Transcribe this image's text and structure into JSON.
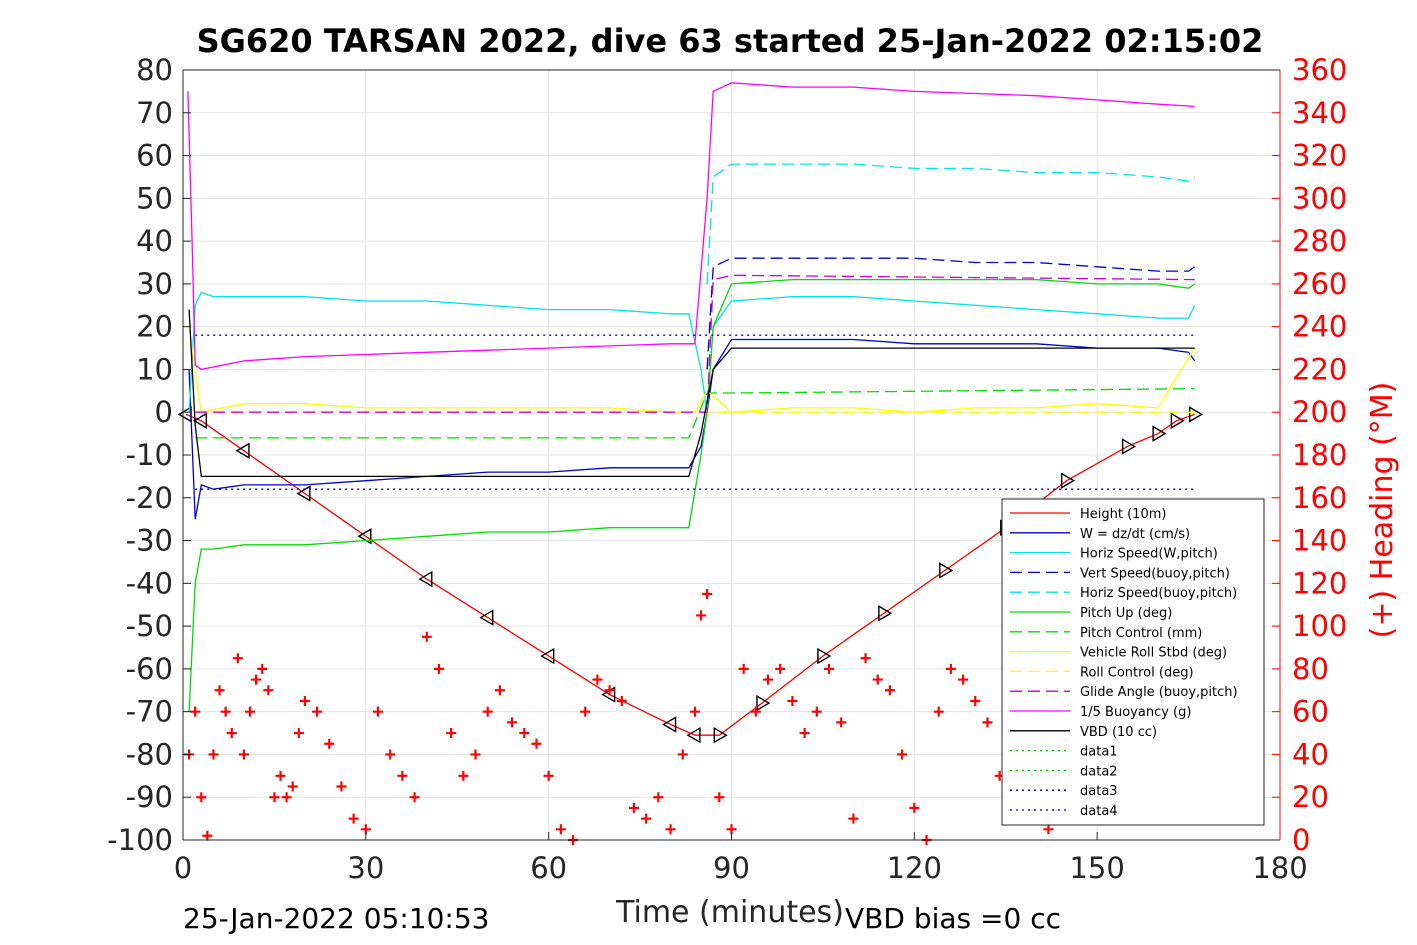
{
  "chart_data": {
    "type": "line",
    "title": "SG620 TARSAN 2022, dive 63 started 25-Jan-2022 02:15:02",
    "xlabel": "Time (minutes)",
    "ylabel_right": "(+) Heading (°M)",
    "footer_left": "25-Jan-2022 05:10:53",
    "footer_right": "VBD bias =0 cc",
    "xlim": [
      0,
      180
    ],
    "ylim_left": [
      -100,
      80
    ],
    "ylim_right": [
      0,
      360
    ],
    "x_ticks": [
      "0",
      "30",
      "60",
      "90",
      "120",
      "150",
      "180"
    ],
    "y_ticks_left": [
      "80",
      "70",
      "60",
      "50",
      "40",
      "30",
      "20",
      "10",
      "0",
      "-10",
      "-20",
      "-30",
      "-40",
      "-50",
      "-60",
      "-70",
      "-80",
      "-90",
      "-100"
    ],
    "y_ticks_right": [
      "360",
      "340",
      "320",
      "300",
      "280",
      "260",
      "240",
      "220",
      "200",
      "180",
      "160",
      "140",
      "120",
      "100",
      "80",
      "60",
      "40",
      "20",
      "0"
    ],
    "grid": true,
    "legend_position": "lower-right",
    "legend": [
      {
        "label": "Height (10m)",
        "color": "#ff0000",
        "dash": "solid"
      },
      {
        "label": "W = dz/dt (cm/s)",
        "color": "#0000cc",
        "dash": "solid"
      },
      {
        "label": "Horiz Speed(W,pitch)",
        "color": "#00e5e5",
        "dash": "solid"
      },
      {
        "label": "Vert Speed(buoy,pitch)",
        "color": "#0000cc",
        "dash": "dashed"
      },
      {
        "label": "Horiz Speed(buoy,pitch)",
        "color": "#00e5e5",
        "dash": "dashed"
      },
      {
        "label": "Pitch Up (deg)",
        "color": "#00dd00",
        "dash": "solid"
      },
      {
        "label": "Pitch Control (mm)",
        "color": "#00dd00",
        "dash": "dashed"
      },
      {
        "label": "Vehicle Roll Stbd (deg)",
        "color": "#ffff00",
        "dash": "solid"
      },
      {
        "label": "Roll Control (deg)",
        "color": "#ffff00",
        "dash": "dashed"
      },
      {
        "label": "Glide Angle (buoy,pitch)",
        "color": "#cc00cc",
        "dash": "dashed"
      },
      {
        "label": "1/5 Buoyancy (g)",
        "color": "#ff00ff",
        "dash": "solid"
      },
      {
        "label": "VBD (10 cc)",
        "color": "#000000",
        "dash": "solid"
      },
      {
        "label": "data1",
        "color": "#00cc00",
        "dash": "dotted"
      },
      {
        "label": "data2",
        "color": "#00cc00",
        "dash": "dotted"
      },
      {
        "label": "data3",
        "color": "#000066",
        "dash": "dotted"
      },
      {
        "label": "data4",
        "color": "#0000cc",
        "dash": "dotted"
      }
    ],
    "series": [
      {
        "name": "Height (10m)",
        "color": "#ff0000",
        "axis": "left",
        "x": [
          0.5,
          3,
          10,
          20,
          30,
          40,
          50,
          60,
          70,
          80,
          84,
          88,
          95,
          105,
          115,
          125,
          135,
          145,
          155,
          160,
          163,
          166
        ],
        "y": [
          -0.5,
          -2,
          -9,
          -19,
          -29,
          -39,
          -48,
          -57,
          -66,
          -73,
          -75.5,
          -75.5,
          -68,
          -57,
          -47,
          -37,
          -27,
          -16,
          -8,
          -5,
          -2,
          -0.5
        ]
      },
      {
        "name": "W = dz/dt (cm/s)",
        "color": "#0000cc",
        "axis": "left",
        "x": [
          1,
          2,
          3,
          5,
          10,
          20,
          30,
          40,
          50,
          60,
          70,
          80,
          83,
          85,
          86,
          87,
          90,
          100,
          110,
          120,
          130,
          140,
          150,
          160,
          165,
          166
        ],
        "y": [
          10,
          -25,
          -17,
          -18,
          -17,
          -17,
          -16,
          -15,
          -14,
          -14,
          -13,
          -13,
          -13,
          -8,
          0,
          10,
          17,
          17,
          17,
          16,
          16,
          16,
          15,
          15,
          14,
          12
        ]
      },
      {
        "name": "Horiz Speed(W,pitch)",
        "color": "#00e5e5",
        "axis": "left",
        "x": [
          1,
          2,
          3,
          5,
          10,
          20,
          30,
          40,
          50,
          60,
          70,
          80,
          83,
          85,
          86,
          87,
          90,
          100,
          110,
          120,
          130,
          140,
          150,
          160,
          165,
          166
        ],
        "y": [
          0,
          25,
          28,
          27,
          27,
          27,
          26,
          26,
          25,
          24,
          24,
          23,
          23,
          10,
          0,
          20,
          26,
          27,
          27,
          26,
          25,
          24,
          23,
          22,
          22,
          25
        ]
      },
      {
        "name": "Vert Speed(buoy,pitch)",
        "color": "#0000cc",
        "axis": "left",
        "dash": "dashed",
        "x": [
          86,
          87,
          90,
          100,
          110,
          120,
          130,
          140,
          150,
          160,
          165,
          166
        ],
        "y": [
          10,
          34,
          36,
          36,
          36,
          36,
          35,
          35,
          34,
          33,
          33,
          34
        ]
      },
      {
        "name": "Horiz Speed(buoy,pitch)",
        "color": "#00e5e5",
        "axis": "left",
        "dash": "dashed",
        "x": [
          86,
          87,
          90,
          100,
          110,
          120,
          130,
          140,
          150,
          160,
          165,
          166
        ],
        "y": [
          30,
          55,
          58,
          58,
          58,
          57,
          57,
          56,
          56,
          55,
          54,
          55
        ]
      },
      {
        "name": "Pitch Up (deg)",
        "color": "#00dd00",
        "axis": "left",
        "x": [
          1,
          2,
          3,
          5,
          10,
          20,
          30,
          40,
          50,
          60,
          70,
          80,
          83,
          85,
          86,
          87,
          90,
          100,
          110,
          120,
          130,
          140,
          150,
          160,
          165,
          166
        ],
        "y": [
          -70,
          -40,
          -32,
          -32,
          -31,
          -31,
          -30,
          -29,
          -28,
          -28,
          -27,
          -27,
          -27,
          -10,
          0,
          20,
          30,
          31,
          31,
          31,
          31,
          31,
          30,
          30,
          29,
          30
        ]
      },
      {
        "name": "Pitch Control (mm)",
        "color": "#00dd00",
        "axis": "left",
        "dash": "dashed",
        "x": [
          2,
          83,
          86,
          90,
          166
        ],
        "y": [
          -6,
          -6,
          4.5,
          4.5,
          5.5
        ]
      },
      {
        "name": "Vehicle Roll Stbd (deg)",
        "color": "#ffff00",
        "axis": "left",
        "x": [
          1,
          3,
          10,
          20,
          30,
          40,
          50,
          60,
          70,
          80,
          84,
          86,
          90,
          100,
          110,
          120,
          130,
          140,
          150,
          160,
          166
        ],
        "y": [
          20,
          0,
          2,
          2,
          1,
          1,
          1,
          1,
          1,
          0,
          0,
          5,
          0,
          1,
          1,
          0,
          1,
          1,
          2,
          1,
          15
        ]
      },
      {
        "name": "Roll Control (deg)",
        "color": "#ffff00",
        "axis": "left",
        "dash": "dashed",
        "x": [
          2,
          166
        ],
        "y": [
          0,
          0
        ]
      },
      {
        "name": "Glide Angle (buoy,pitch)",
        "color": "#cc00cc",
        "axis": "left",
        "dash": "dashed",
        "x": [
          2,
          86,
          87,
          90,
          166
        ],
        "y": [
          0,
          0,
          31,
          32,
          31
        ]
      },
      {
        "name": "1/5 Buoyancy (g)",
        "color": "#ff00ff",
        "axis": "left",
        "x": [
          0.8,
          1.5,
          2,
          3,
          10,
          20,
          30,
          40,
          50,
          60,
          70,
          80,
          84,
          86,
          87,
          90,
          100,
          110,
          120,
          130,
          140,
          150,
          160,
          166
        ],
        "y": [
          75,
          40,
          11,
          10,
          12,
          13,
          13.5,
          14,
          14.5,
          15,
          15.5,
          16,
          16,
          50,
          75,
          77,
          76,
          76,
          75,
          74.5,
          74,
          73,
          72,
          71.5
        ]
      },
      {
        "name": "VBD (10 cc)",
        "color": "#000000",
        "axis": "left",
        "x": [
          1,
          2,
          3,
          83,
          85,
          87,
          90,
          166
        ],
        "y": [
          24,
          -3,
          -15,
          -15,
          -5,
          10,
          15,
          15
        ]
      },
      {
        "name": "data1",
        "color": "#00cc00",
        "axis": "left",
        "dash": "dotted",
        "x": [],
        "y": []
      },
      {
        "name": "data2",
        "color": "#00cc00",
        "axis": "left",
        "dash": "dotted",
        "x": [],
        "y": []
      },
      {
        "name": "data3",
        "color": "#000066",
        "axis": "left",
        "dash": "dotted",
        "x": [
          2,
          166
        ],
        "y": [
          -18,
          -18
        ]
      },
      {
        "name": "data4",
        "color": "#0000cc",
        "axis": "left",
        "dash": "dotted",
        "x": [
          2,
          166
        ],
        "y": [
          18,
          18
        ]
      },
      {
        "name": "(+) Heading (°M)",
        "color": "#ff0000",
        "axis": "right",
        "marker": "+",
        "x": [
          1,
          2,
          3,
          4,
          5,
          6,
          7,
          8,
          9,
          10,
          11,
          12,
          13,
          14,
          15,
          16,
          17,
          18,
          19,
          20,
          22,
          24,
          26,
          28,
          30,
          32,
          34,
          36,
          38,
          40,
          42,
          44,
          46,
          48,
          50,
          52,
          54,
          56,
          58,
          60,
          62,
          64,
          66,
          68,
          70,
          72,
          74,
          76,
          78,
          80,
          82,
          84,
          85,
          86,
          88,
          90,
          92,
          94,
          96,
          98,
          100,
          102,
          104,
          106,
          108,
          110,
          112,
          114,
          116,
          118,
          120,
          122,
          124,
          126,
          128,
          130,
          132,
          134,
          136,
          138,
          140,
          142,
          144,
          146,
          148,
          150,
          152,
          154,
          156,
          158,
          160,
          162,
          164,
          166
        ],
        "y": [
          40,
          60,
          20,
          2,
          40,
          70,
          60,
          50,
          85,
          40,
          60,
          75,
          80,
          70,
          20,
          30,
          20,
          25,
          50,
          65,
          60,
          45,
          25,
          10,
          5,
          60,
          40,
          30,
          20,
          95,
          80,
          50,
          30,
          40,
          60,
          70,
          55,
          50,
          45,
          30,
          5,
          0,
          60,
          75,
          70,
          65,
          15,
          10,
          20,
          5,
          40,
          60,
          105,
          115,
          20,
          5,
          80,
          60,
          75,
          80,
          65,
          50,
          60,
          80,
          55,
          10,
          85,
          75,
          70,
          40,
          15,
          0,
          60,
          80,
          75,
          65,
          55,
          30,
          100,
          60,
          20,
          5,
          40,
          65,
          75,
          20,
          30,
          70,
          60,
          80,
          65,
          30,
          10,
          20
        ]
      }
    ]
  }
}
